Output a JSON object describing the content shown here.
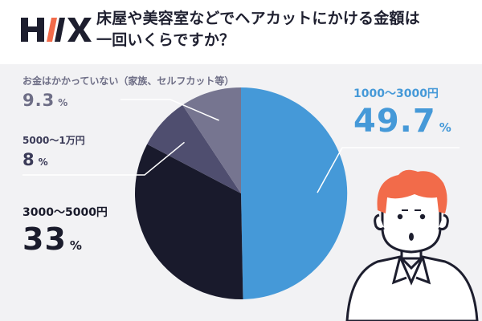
{
  "header": {
    "logo_text": "HIX",
    "title_line1": "床屋や美容室などでヘアカットにかける金額は",
    "title_line2": "一回いくらですか？"
  },
  "colors": {
    "accent_blue": "#4599d8",
    "slice_navy": "#191a2c",
    "slice_purple": "#4f4e6f",
    "slice_gray": "#767590",
    "hair_orange": "#f26b4a",
    "panel_bg": "#f2f2f4"
  },
  "icons": [
    "logo",
    "person-illustration"
  ],
  "chart_data": {
    "type": "pie",
    "title": "床屋や美容室などでヘアカットにかける金額は一回いくらですか？",
    "start": "top",
    "direction": "clockwise",
    "unit": "%",
    "slices": [
      {
        "label": "1000〜3000円",
        "value": 49.7,
        "value_text": "49.7",
        "color": "#4599d8"
      },
      {
        "label": "3000〜5000円",
        "value": 33,
        "value_text": "33",
        "color": "#191a2c"
      },
      {
        "label": "5000〜1万円",
        "value": 8,
        "value_text": "8",
        "color": "#4f4e6f"
      },
      {
        "label": "お金はかかっていない（家族、セルフカット等）",
        "value": 9.3,
        "value_text": "9.3",
        "color": "#767590"
      }
    ]
  }
}
